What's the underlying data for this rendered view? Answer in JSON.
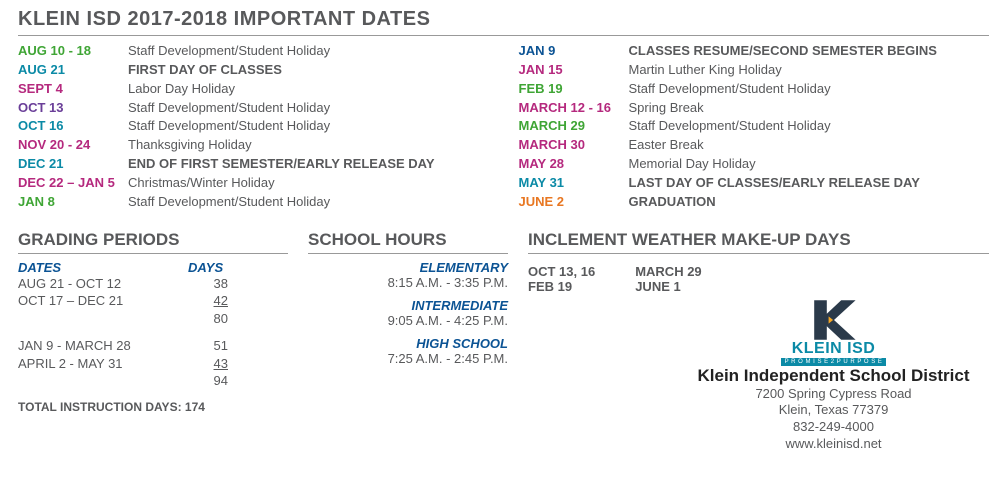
{
  "title": "KLEIN ISD 2017-2018 IMPORTANT DATES",
  "colors": {
    "green": "#3fa535",
    "teal": "#0b8aa6",
    "magenta": "#b5297e",
    "purple": "#6a3e98",
    "orange": "#e87722",
    "navy": "#0b5394",
    "gray": "#58595b"
  },
  "dates_left": [
    {
      "date": "AUG 10 - 18",
      "color": "#3fa535",
      "desc": "Staff Development/Student Holiday",
      "bold": false
    },
    {
      "date": "AUG 21",
      "color": "#0b8aa6",
      "desc": "FIRST DAY OF CLASSES",
      "bold": true
    },
    {
      "date": "SEPT 4",
      "color": "#b5297e",
      "desc": "Labor Day Holiday",
      "bold": false
    },
    {
      "date": "OCT 13",
      "color": "#6a3e98",
      "desc": "Staff Development/Student Holiday",
      "bold": false
    },
    {
      "date": "OCT 16",
      "color": "#0b8aa6",
      "desc": "Staff Development/Student Holiday",
      "bold": false
    },
    {
      "date": "NOV 20 - 24",
      "color": "#b5297e",
      "desc": "Thanksgiving Holiday",
      "bold": false
    },
    {
      "date": "DEC 21",
      "color": "#0b8aa6",
      "desc": "END OF FIRST SEMESTER/EARLY RELEASE DAY",
      "bold": true
    },
    {
      "date": "DEC 22 – JAN 5",
      "color": "#b5297e",
      "desc": "Christmas/Winter Holiday",
      "bold": false
    },
    {
      "date": "JAN 8",
      "color": "#3fa535",
      "desc": "Staff Development/Student Holiday",
      "bold": false
    }
  ],
  "dates_right": [
    {
      "date": "JAN 9",
      "color": "#0b5394",
      "desc": "CLASSES RESUME/SECOND SEMESTER BEGINS",
      "bold": true
    },
    {
      "date": "JAN 15",
      "color": "#b5297e",
      "desc": "Martin Luther King Holiday",
      "bold": false
    },
    {
      "date": "FEB 19",
      "color": "#3fa535",
      "desc": "Staff Development/Student Holiday",
      "bold": false
    },
    {
      "date": "MARCH 12 - 16",
      "color": "#b5297e",
      "desc": "Spring Break",
      "bold": false
    },
    {
      "date": "MARCH 29",
      "color": "#3fa535",
      "desc": "Staff Development/Student Holiday",
      "bold": false
    },
    {
      "date": "MARCH 30",
      "color": "#b5297e",
      "desc": "Easter Break",
      "bold": false
    },
    {
      "date": "MAY 28",
      "color": "#b5297e",
      "desc": "Memorial Day Holiday",
      "bold": false
    },
    {
      "date": "MAY 31",
      "color": "#0b8aa6",
      "desc": "LAST DAY OF CLASSES/EARLY RELEASE DAY",
      "bold": true
    },
    {
      "date": "JUNE 2",
      "color": "#e87722",
      "desc": "GRADUATION",
      "bold": true
    }
  ],
  "grading": {
    "title": "GRADING PERIODS",
    "head_dates": "DATES",
    "head_days": "DAYS",
    "rows1": [
      {
        "range": "AUG 21 - OCT  12",
        "days": "38",
        "u": false
      },
      {
        "range": "OCT 17 – DEC 21",
        "days": "42",
        "u": true
      },
      {
        "range": "",
        "days": "80",
        "u": false
      }
    ],
    "rows2": [
      {
        "range": "JAN 9 - MARCH 28",
        "days": "51",
        "u": false
      },
      {
        "range": "APRIL 2 - MAY 31",
        "days": "43",
        "u": true
      },
      {
        "range": "",
        "days": "94",
        "u": false
      }
    ],
    "total": "TOTAL INSTRUCTION DAYS: 174"
  },
  "hours": {
    "title": "SCHOOL HOURS",
    "levels": [
      {
        "label": "ELEMENTARY",
        "time": "8:15 A.M. - 3:35 P.M."
      },
      {
        "label": "INTERMEDIATE",
        "time": "9:05 A.M. - 4:25 P.M."
      },
      {
        "label": "HIGH SCHOOL",
        "time": "7:25 A.M. - 2:45 P.M."
      }
    ]
  },
  "weather": {
    "title": "INCLEMENT WEATHER MAKE-UP DAYS",
    "col1": [
      "OCT 13, 16",
      "FEB 19"
    ],
    "col2": [
      "MARCH 29",
      "JUNE 1"
    ]
  },
  "district": {
    "logo_text": "KLEIN ISD",
    "tagline": "P R O M I S E 2 P U R P O S E",
    "name": "Klein Independent School District",
    "addr1": "7200 Spring Cypress Road",
    "addr2": "Klein, Texas 77379",
    "phone": "832-249-4000",
    "web": "www.kleinisd.net"
  }
}
